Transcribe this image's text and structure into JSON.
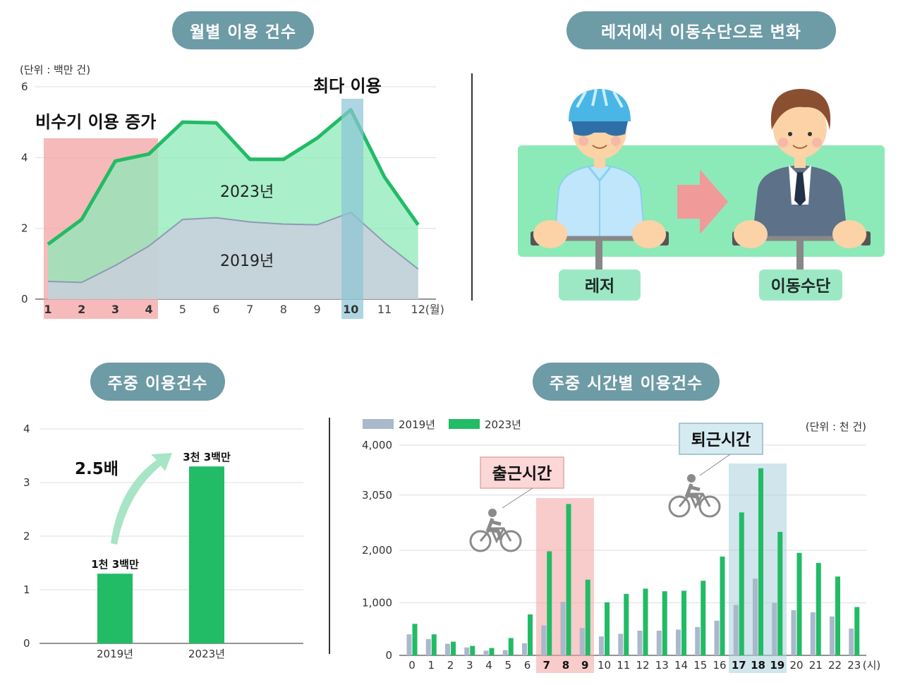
{
  "titles": {
    "monthly": "월별 이용 건수",
    "shift": "레저에서 이동수단으로 변화",
    "weekday": "주중 이용건수",
    "hourly": "주중 시간별 이용건수"
  },
  "shift_panel": {
    "leisure_label": "레저",
    "transport_label": "이동수단"
  },
  "colors": {
    "pill": "#6d9ba6",
    "green": "#22bb66",
    "green_fill": "#8ceab8",
    "gray_fill": "#c8d0dc",
    "gray_bar": "#aab8cc",
    "red_band": "#f4a3a3",
    "blue_band": "#a9cfdc"
  },
  "chart_data": [
    {
      "type": "area",
      "unit_label": "(단위 : 백만 건)",
      "x": [
        "1",
        "2",
        "3",
        "4",
        "5",
        "6",
        "7",
        "8",
        "9",
        "10",
        "11",
        "12"
      ],
      "x_suffix": "(월)",
      "highlight_x": [
        "1",
        "2",
        "3",
        "4"
      ],
      "peak_x": "10",
      "ylim": [
        0,
        6
      ],
      "yticks": [
        "0",
        "2",
        "4",
        "6"
      ],
      "series": [
        {
          "name": "2023년",
          "values": [
            1.55,
            2.25,
            3.9,
            4.1,
            5.0,
            4.98,
            3.95,
            3.95,
            4.55,
            5.35,
            3.45,
            2.1
          ]
        },
        {
          "name": "2019년",
          "values": [
            0.5,
            0.47,
            0.95,
            1.5,
            2.25,
            2.3,
            2.18,
            2.12,
            2.1,
            2.45,
            1.6,
            0.85
          ]
        }
      ],
      "annotations": {
        "offseason": "비수기 이용 증가",
        "peak": "최다 이용",
        "label_2023": "2023년",
        "label_2019": "2019년"
      }
    },
    {
      "type": "bar",
      "categories": [
        "2019년",
        "2023년"
      ],
      "values": [
        1.3,
        3.3
      ],
      "value_labels": [
        "1천 3백만",
        "3천 3백만"
      ],
      "ylim": [
        0,
        4
      ],
      "yticks": [
        "0",
        "1",
        "2",
        "3",
        "4"
      ],
      "annotation": "2.5배"
    },
    {
      "type": "bar",
      "unit_label": "(단위 : 천 건)",
      "categories": [
        "0",
        "1",
        "2",
        "3",
        "4",
        "5",
        "6",
        "7",
        "8",
        "9",
        "10",
        "11",
        "12",
        "13",
        "14",
        "15",
        "16",
        "17",
        "18",
        "19",
        "20",
        "21",
        "22",
        "23"
      ],
      "x_suffix": "(시)",
      "bold_categories": [
        "7",
        "8",
        "9",
        "17",
        "18",
        "19"
      ],
      "ylim": [
        0,
        4000
      ],
      "yticks": [
        "0",
        "1,000",
        "2,000",
        "3,050",
        "4,000"
      ],
      "series": [
        {
          "name": "2019년",
          "values": [
            400,
            310,
            220,
            150,
            90,
            100,
            230,
            570,
            1020,
            520,
            360,
            410,
            470,
            470,
            490,
            540,
            660,
            960,
            1460,
            1000,
            860,
            820,
            740,
            510
          ]
        },
        {
          "name": "2023년",
          "values": [
            600,
            400,
            260,
            180,
            140,
            330,
            780,
            1980,
            2880,
            1440,
            1010,
            1170,
            1270,
            1220,
            1230,
            1420,
            1880,
            2720,
            3560,
            2350,
            1950,
            1760,
            1500,
            920
          ]
        }
      ],
      "annotations": {
        "commute_in": "출근시간",
        "commute_out": "퇴근시간"
      }
    }
  ]
}
